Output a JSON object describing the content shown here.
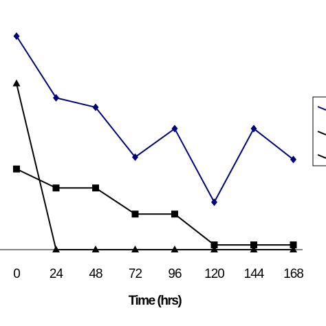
{
  "chart_data": {
    "type": "line",
    "title": "",
    "xlabel": "Time (hrs)",
    "ylabel": "",
    "x": [
      0,
      24,
      48,
      72,
      96,
      120,
      144,
      168
    ],
    "ylim": [
      0,
      100
    ],
    "grid": false,
    "legend": "right",
    "series": [
      {
        "marker": "diamond",
        "color": "#00007a",
        "values": [
          90,
          64,
          60,
          39,
          51,
          20,
          51,
          38
        ]
      },
      {
        "marker": "square",
        "color": "#000000",
        "values": [
          34,
          26,
          26,
          15,
          15,
          2,
          2,
          2
        ]
      },
      {
        "marker": "triangle",
        "color": "#000000",
        "values": [
          70,
          0,
          0,
          0,
          0,
          0,
          0,
          0
        ]
      }
    ]
  }
}
